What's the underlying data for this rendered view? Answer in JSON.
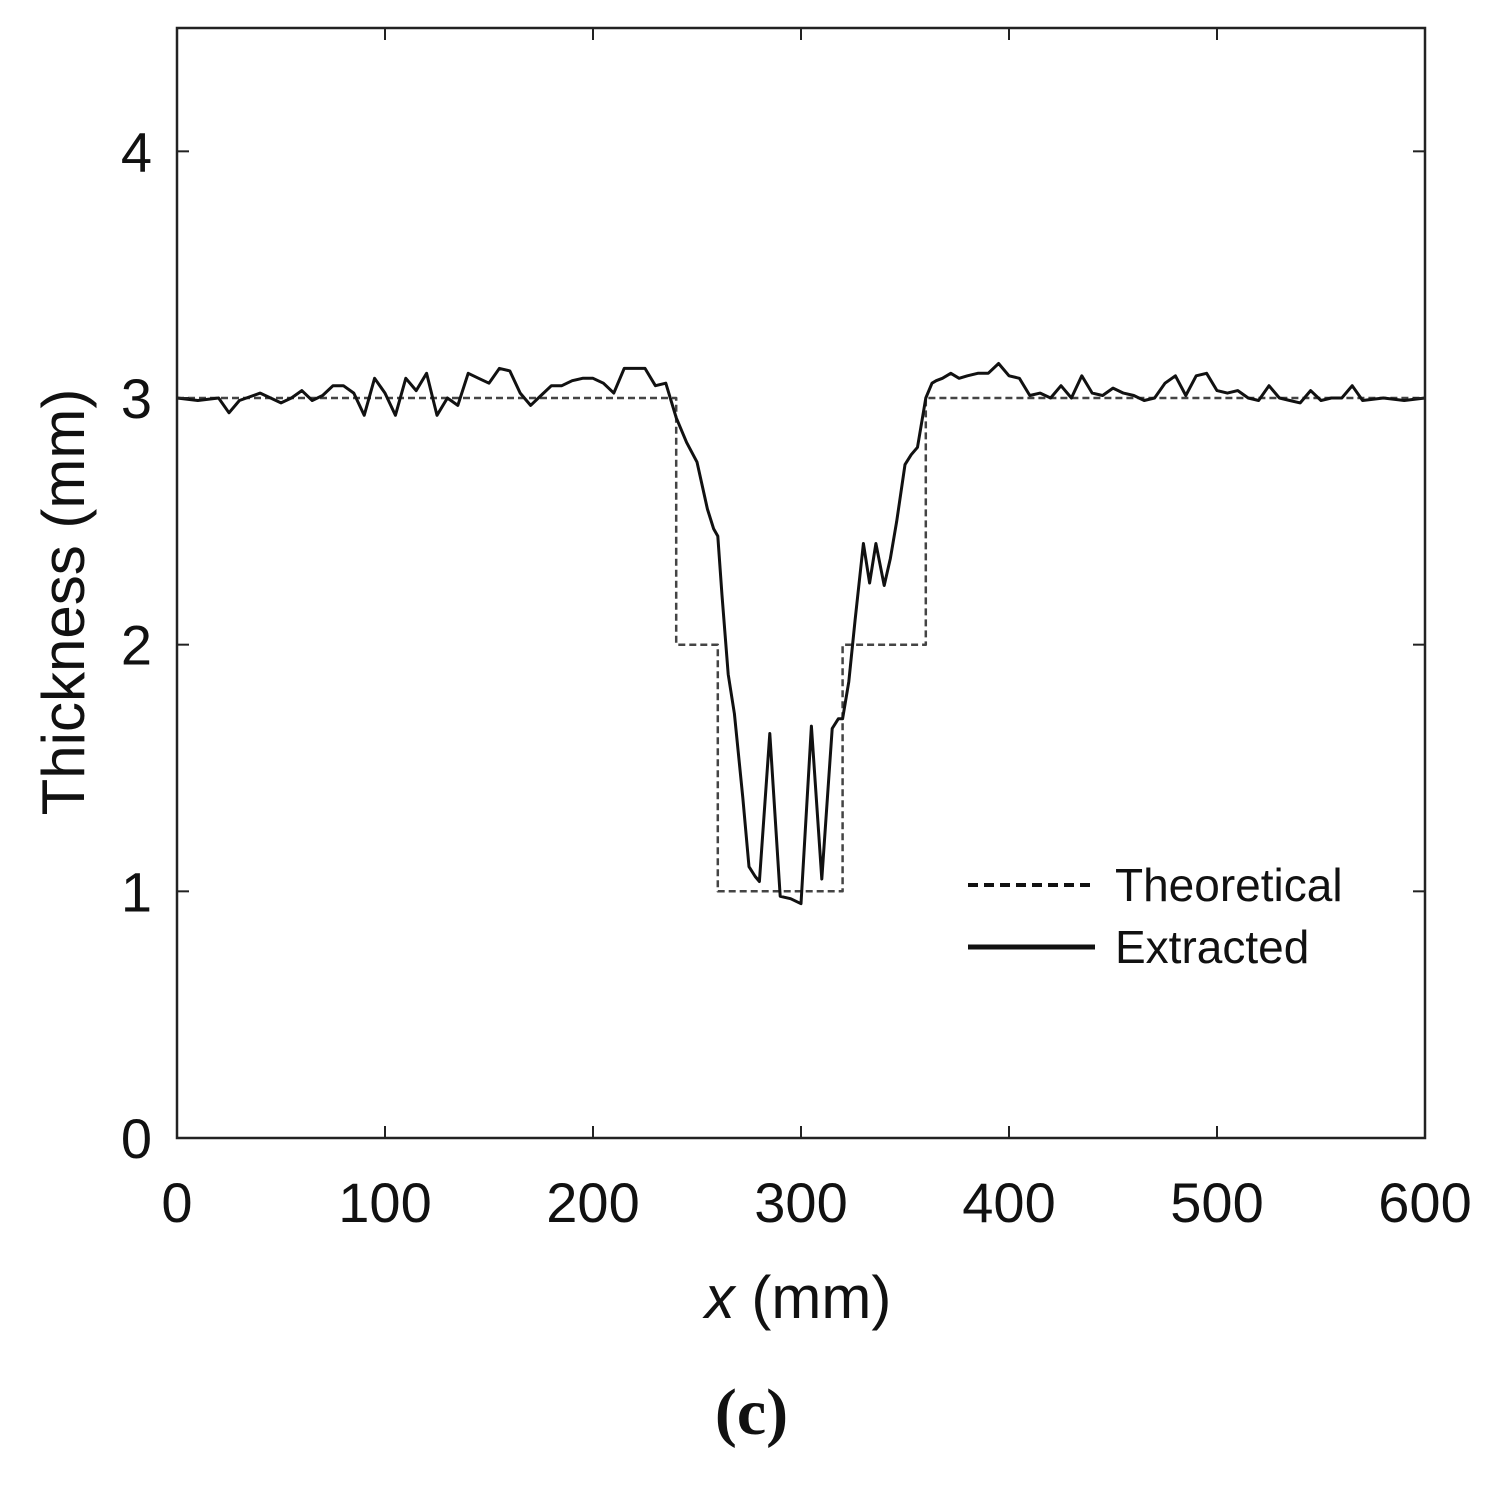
{
  "panel_label": "(c)",
  "chart_data": {
    "type": "line",
    "title": "",
    "xlabel": "x (mm)",
    "xlabel_var": "x",
    "xlabel_unit": " (mm)",
    "ylabel": "Thickness (mm)",
    "xlim": [
      0,
      600
    ],
    "ylim": [
      0,
      4.5
    ],
    "xticks": [
      0,
      100,
      200,
      300,
      400,
      500,
      600
    ],
    "yticks": [
      0,
      1,
      2,
      3,
      4
    ],
    "xtick_labels": [
      "0",
      "100",
      "200",
      "300",
      "400",
      "500",
      "600"
    ],
    "ytick_labels": [
      "0",
      "1",
      "2",
      "3",
      "4"
    ],
    "grid": false,
    "legend_position": "lower-right",
    "series": [
      {
        "name": "Theoretical",
        "style": "dashed",
        "x": [
          0,
          240,
          240,
          260,
          260,
          320,
          320,
          360,
          360,
          600
        ],
        "y": [
          3,
          3,
          2,
          2,
          1,
          1,
          2,
          2,
          3,
          3
        ]
      },
      {
        "name": "Extracted",
        "style": "solid",
        "x": [
          0,
          10,
          20,
          25,
          30,
          40,
          50,
          55,
          60,
          65,
          70,
          75,
          80,
          85,
          90,
          95,
          100,
          105,
          110,
          115,
          120,
          125,
          130,
          135,
          140,
          145,
          150,
          155,
          160,
          165,
          170,
          175,
          180,
          185,
          190,
          195,
          200,
          205,
          210,
          215,
          220,
          225,
          230,
          235,
          240,
          245,
          250,
          255,
          258,
          260,
          262,
          265,
          268,
          272,
          275,
          278,
          280,
          285,
          290,
          295,
          300,
          305,
          310,
          315,
          318,
          320,
          323,
          326,
          330,
          333,
          336,
          340,
          343,
          346,
          350,
          353,
          356,
          360,
          363,
          365,
          368,
          372,
          376,
          380,
          385,
          390,
          395,
          400,
          405,
          410,
          415,
          420,
          425,
          430,
          435,
          440,
          445,
          450,
          455,
          460,
          465,
          470,
          475,
          480,
          485,
          490,
          495,
          500,
          505,
          510,
          515,
          520,
          525,
          530,
          535,
          540,
          545,
          550,
          555,
          560,
          565,
          570,
          580,
          590,
          600
        ],
        "y": [
          3.0,
          2.99,
          3.0,
          2.94,
          2.99,
          3.02,
          2.98,
          3.0,
          3.03,
          2.99,
          3.01,
          3.05,
          3.05,
          3.02,
          2.93,
          3.08,
          3.02,
          2.93,
          3.08,
          3.03,
          3.1,
          2.93,
          3.0,
          2.97,
          3.1,
          3.08,
          3.06,
          3.12,
          3.11,
          3.02,
          2.97,
          3.01,
          3.05,
          3.05,
          3.07,
          3.08,
          3.08,
          3.06,
          3.02,
          3.12,
          3.12,
          3.12,
          3.05,
          3.06,
          2.92,
          2.82,
          2.74,
          2.55,
          2.47,
          2.44,
          2.2,
          1.88,
          1.72,
          1.38,
          1.1,
          1.06,
          1.04,
          1.64,
          0.98,
          0.97,
          0.95,
          1.67,
          1.05,
          1.66,
          1.7,
          1.7,
          1.85,
          2.1,
          2.41,
          2.25,
          2.41,
          2.24,
          2.35,
          2.5,
          2.73,
          2.77,
          2.8,
          3.0,
          3.06,
          3.07,
          3.08,
          3.1,
          3.08,
          3.09,
          3.1,
          3.1,
          3.14,
          3.09,
          3.08,
          3.01,
          3.02,
          3.0,
          3.05,
          3.0,
          3.09,
          3.02,
          3.01,
          3.04,
          3.02,
          3.01,
          2.99,
          3.0,
          3.06,
          3.09,
          3.01,
          3.09,
          3.1,
          3.03,
          3.02,
          3.03,
          3.0,
          2.99,
          3.05,
          3.0,
          2.99,
          2.98,
          3.03,
          2.99,
          3.0,
          3.0,
          3.05,
          2.99,
          3.0,
          2.99,
          3.0
        ]
      }
    ]
  }
}
